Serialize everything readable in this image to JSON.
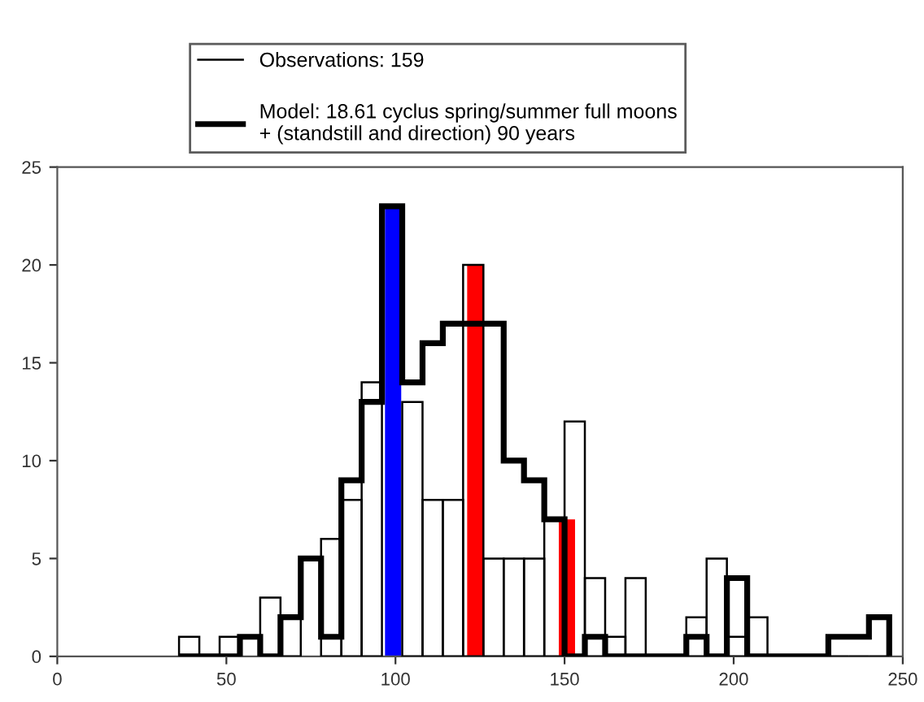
{
  "chart_data": {
    "type": "histogram",
    "bins": [
      36,
      42,
      48,
      54,
      60,
      66,
      72,
      78,
      84,
      90,
      96,
      102,
      108,
      114,
      120,
      126,
      132,
      138,
      144,
      150,
      156,
      162,
      168,
      174,
      180,
      186,
      192,
      198,
      204,
      210,
      216,
      222,
      228,
      234,
      240,
      246
    ],
    "series": [
      {
        "name": "Observations: 159",
        "color": "#000000",
        "line_style": "thin",
        "values": [
          1,
          0,
          1,
          null,
          3,
          2,
          null,
          6,
          8,
          14,
          null,
          13,
          8,
          8,
          20,
          5,
          5,
          5,
          7,
          12,
          4,
          1,
          4,
          0,
          0,
          2,
          5,
          1,
          2,
          0,
          0,
          0,
          0,
          0,
          0
        ]
      },
      {
        "name": "Model: 18.61 cyclus spring/summer full moons + (standstill and direction) 90 years",
        "color": "#000000",
        "line_style": "thick",
        "values": [
          0,
          0,
          0,
          1,
          0,
          2,
          5,
          1,
          9,
          13,
          23,
          14,
          16,
          17,
          17,
          17,
          10,
          9,
          7,
          0,
          1,
          0,
          0,
          0,
          0,
          1,
          0,
          4,
          0,
          0,
          0,
          0,
          1,
          1,
          2
        ]
      },
      {
        "type": "bar",
        "x": [
          99.3,
          123.6,
          150.7
        ],
        "values": [
          23,
          20,
          7
        ],
        "colors": [
          "#0000ff",
          "#ff0000",
          "#ff0000"
        ]
      }
    ],
    "xlim": [
      0,
      250
    ],
    "ylim": [
      0,
      25
    ],
    "xticks": [
      0,
      50,
      100,
      150,
      200,
      250
    ],
    "yticks": [
      0,
      5,
      10,
      15,
      20,
      25
    ],
    "grid": false,
    "legend": "top"
  }
}
